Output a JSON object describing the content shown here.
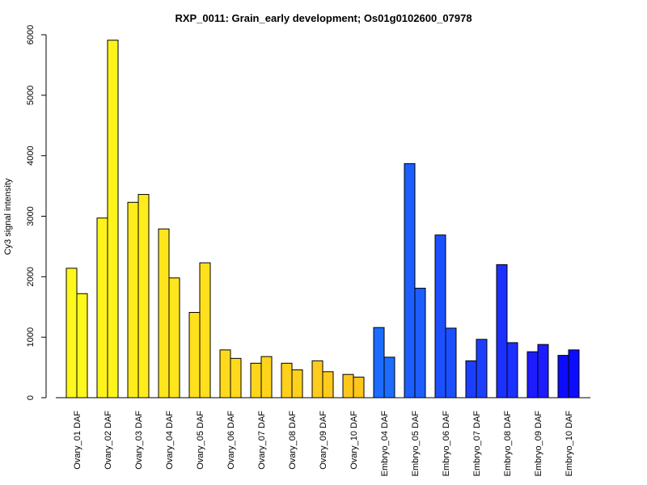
{
  "chart_data": {
    "type": "bar",
    "title": "RXP_0011: Grain_early development; Os01g0102600_07978",
    "xlabel": "",
    "ylabel": "Cy3 signal intensity",
    "ylim": [
      0,
      6000
    ],
    "yticks": [
      0,
      1000,
      2000,
      3000,
      4000,
      5000,
      6000
    ],
    "grid": false,
    "legend": "none",
    "categories": [
      "Ovary_01 DAF",
      "Ovary_02 DAF",
      "Ovary_03 DAF",
      "Ovary_04 DAF",
      "Ovary_05 DAF",
      "Ovary_06 DAF",
      "Ovary_07 DAF",
      "Ovary_08 DAF",
      "Ovary_09 DAF",
      "Ovary_10 DAF",
      "Embryo_04 DAF",
      "Embryo_05 DAF",
      "Embryo_06 DAF",
      "Embryo_07 DAF",
      "Embryo_08 DAF",
      "Embryo_09 DAF",
      "Embryo_10 DAF"
    ],
    "groups": [
      {
        "values": [
          2140,
          1720
        ],
        "color": "#FFF81C"
      },
      {
        "values": [
          2970,
          5910
        ],
        "color": "#FFF31C"
      },
      {
        "values": [
          3230,
          3360
        ],
        "color": "#FFEC1C"
      },
      {
        "values": [
          2790,
          1980
        ],
        "color": "#FFE61C"
      },
      {
        "values": [
          1410,
          2230
        ],
        "color": "#FFE01C"
      },
      {
        "values": [
          790,
          650
        ],
        "color": "#FFDA1C"
      },
      {
        "values": [
          570,
          680
        ],
        "color": "#FFD51C"
      },
      {
        "values": [
          570,
          460
        ],
        "color": "#FFD01C"
      },
      {
        "values": [
          610,
          430
        ],
        "color": "#FFCB1C"
      },
      {
        "values": [
          385,
          340
        ],
        "color": "#FFC61C"
      },
      {
        "values": [
          1160,
          670
        ],
        "color": "#1C6CFF"
      },
      {
        "values": [
          3870,
          1810
        ],
        "color": "#1C5EFF"
      },
      {
        "values": [
          2690,
          1150
        ],
        "color": "#1C50FF"
      },
      {
        "values": [
          610,
          965
        ],
        "color": "#1C3FFF"
      },
      {
        "values": [
          2200,
          910
        ],
        "color": "#1C30FF"
      },
      {
        "values": [
          760,
          880
        ],
        "color": "#1C1CFF"
      },
      {
        "values": [
          700,
          790
        ],
        "color": "#0C0CFF"
      }
    ]
  }
}
